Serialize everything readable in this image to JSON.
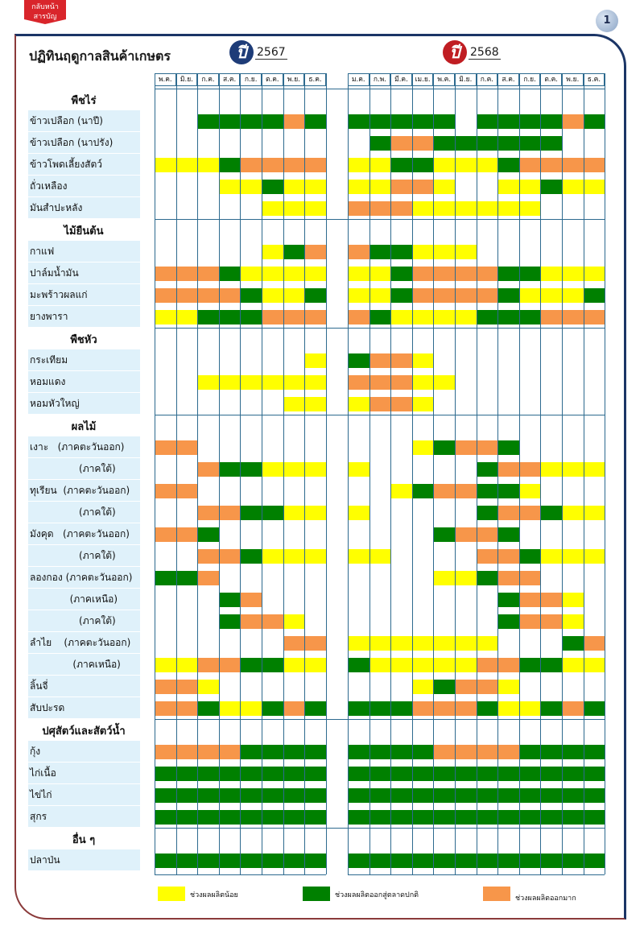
{
  "back_button": {
    "line1": "กลับหน้า",
    "line2": "สารบัญ"
  },
  "page_number": "1",
  "title": "ปฏิทินฤดูกาลสินค้าเกษตร",
  "year1": {
    "symbol": "ปี",
    "year": "2567"
  },
  "year2": {
    "symbol": "ปี",
    "year": "2568"
  },
  "months_2567": [
    "พ.ค.",
    "มิ.ย.",
    "ก.ค.",
    "ส.ค.",
    "ก.ย.",
    "ต.ค.",
    "พ.ย.",
    "ธ.ค."
  ],
  "months_2568": [
    "ม.ค.",
    "ก.พ.",
    "มี.ค.",
    "เม.ย.",
    "พ.ค.",
    "มิ.ย.",
    "ก.ค.",
    "ส.ค.",
    "ก.ย.",
    "ต.ค.",
    "พ.ย.",
    "ธ.ค."
  ],
  "colors": {
    "Y": "#ffff00",
    "G": "#008000",
    "O": "#f7964a",
    "label_bg": "#dff1fa",
    "grid": "#2d6a8f"
  },
  "sections": [
    {
      "title": "พืชไร่",
      "rows": [
        {
          "label": "ข้าวเปลือก (นาปี)",
          "y2567": "..GGGGOG",
          "y2568": "GGGGG.GGGGOG"
        },
        {
          "label": "ข้าวเปลือก (นาปรัง)",
          "y2567": "........",
          "y2568": ".GOOGGGGGG.."
        },
        {
          "label": "ข้าวโพดเลี้ยงสัตว์",
          "y2567": "YYYGOOOO",
          "y2568": "YYGGYYYGOOOO"
        },
        {
          "label": "ถั่วเหลือง",
          "y2567": "...YYGYY",
          "y2568": "YYOOY..YYGYY"
        },
        {
          "label": "มันสำปะหลัง",
          "y2567": ".....YYY",
          "y2568": "OOOYYYYYY..."
        }
      ]
    },
    {
      "title": "ไม้ยืนต้น",
      "rows": [
        {
          "label": "กาแฟ",
          "y2567": ".....YGO",
          "y2568": "OGGYYY......"
        },
        {
          "label": "ปาล์มน้ำมัน",
          "y2567": "OOOGYYYY",
          "y2568": "YYGOOOOGGYYY"
        },
        {
          "label": "มะพร้าวผลแก่",
          "y2567": "OOOOGYYG",
          "y2568": "YYGOOOOGYYYG"
        },
        {
          "label": "ยางพารา",
          "y2567": "YYGGGOOO",
          "y2568": "OGYYYYGGGOOO"
        }
      ]
    },
    {
      "title": "พืชหัว",
      "rows": [
        {
          "label": "กระเทียม",
          "y2567": ".......Y",
          "y2568": "GOOY........"
        },
        {
          "label": "หอมแดง",
          "y2567": "..YYYYYY",
          "y2568": "OOOYY......."
        },
        {
          "label": "หอมหัวใหญ่",
          "y2567": "......YY",
          "y2568": "YOOY........"
        }
      ]
    },
    {
      "title": "ผลไม้",
      "rows": [
        {
          "label": "เงาะ   (ภาคตะวันออก)",
          "y2567": "OO......",
          "y2568": "...YGOOG...."
        },
        {
          "label": "                (ภาคใต้)",
          "y2567": "..OGGYYY",
          "y2568": "Y.....GOOYYY"
        },
        {
          "label": "ทุเรียน  (ภาคตะวันออก)",
          "y2567": "OO......",
          "y2568": "..YGOOGGY..."
        },
        {
          "label": "                (ภาคใต้)",
          "y2567": "..OOGGYY",
          "y2568": "Y.....GOOGYY"
        },
        {
          "label": "มังคุด   (ภาคตะวันออก)",
          "y2567": "OOG.....",
          "y2568": "....GOOG...."
        },
        {
          "label": "                (ภาคใต้)",
          "y2567": "..OOGYYY",
          "y2568": "YY....OOGYYY"
        },
        {
          "label": "ลองกอง (ภาคตะวันออก)",
          "y2567": "GGO.....",
          "y2568": "....YYGOO..."
        },
        {
          "label": "             (ภาคเหนือ)",
          "y2567": "...GO...",
          "y2568": ".......GOOY."
        },
        {
          "label": "                (ภาคใต้)",
          "y2567": "...GOOY.",
          "y2568": ".......GOOY."
        },
        {
          "label": "ลำไย    (ภาคตะวันออก)",
          "y2567": "......OO",
          "y2568": "YYYYYYY...GO"
        },
        {
          "label": "              (ภาคเหนือ)",
          "y2567": "YYOOGGYY",
          "y2568": "GYYYYYOOGGYY"
        },
        {
          "label": "ลิ้นจี่",
          "y2567": "OOY.....",
          "y2568": "...YGOOY...."
        },
        {
          "label": "สับปะรด",
          "y2567": "OOGYYGOG",
          "y2568": "GGGOOOGYYGOG"
        }
      ]
    },
    {
      "title": "ปศุสัตว์และสัตว์น้ำ",
      "rows": [
        {
          "label": "กุ้ง",
          "y2567": "OOOOGGGG",
          "y2568": "GGGGOOOOGGGG"
        },
        {
          "label": "ไก่เนื้อ",
          "y2567": "GGGGGGGG",
          "y2568": "GGGGGGGGGGGG"
        },
        {
          "label": "ไข่ไก่",
          "y2567": "GGGGGGGG",
          "y2568": "GGGGGGGGGGGG"
        },
        {
          "label": "สุกร",
          "y2567": "GGGGGGGG",
          "y2568": "GGGGGGGGGGGG"
        }
      ]
    },
    {
      "title": "อื่น ๆ",
      "rows": [
        {
          "label": "ปลาป่น",
          "y2567": "GGGGGGGG",
          "y2568": "GGGGGGGGGGGG"
        }
      ]
    }
  ],
  "legend": {
    "low": "ช่วงผลผลิตน้อย",
    "normal": "ช่วงผลผลิตออกสู่ตลาดปกติ",
    "high": "ช่วงผลผลิตออกมาก"
  }
}
